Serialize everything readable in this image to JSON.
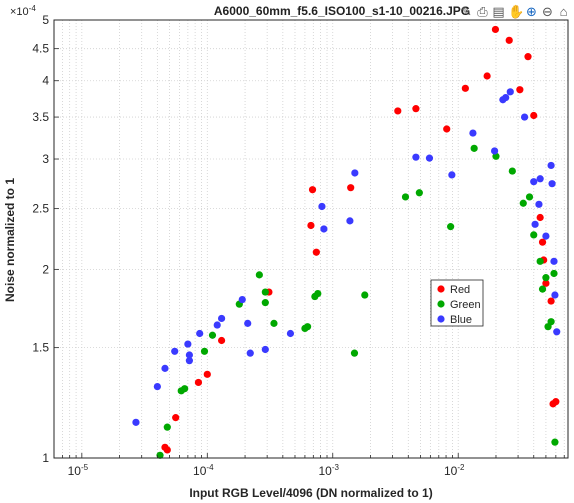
{
  "toolbar": {
    "icons": [
      "edit-icon",
      "print-icon",
      "save-icon",
      "pan-icon",
      "zoom-in-icon",
      "zoom-out-icon",
      "home-icon"
    ]
  },
  "chart_data": {
    "type": "scatter",
    "title": "A6000_60mm_f5.6_ISO100_s1-10_00216.JPG",
    "xlabel": "Input RGB Level/4096  (DN normalized to 1)",
    "ylabel": "Noise  normalized to 1",
    "y_exponent_label": "×10",
    "y_exponent_power": "-4",
    "x_scale": "log",
    "y_scale": "log",
    "xlim": [
      6e-06,
      0.075
    ],
    "ylim": [
      0.0001,
      0.0005
    ],
    "x_ticks": [
      {
        "value": 1e-05,
        "base": "10",
        "power": "-5"
      },
      {
        "value": 0.0001,
        "base": "10",
        "power": "-4"
      },
      {
        "value": 0.001,
        "base": "10",
        "power": "-3"
      },
      {
        "value": 0.01,
        "base": "10",
        "power": "-2"
      }
    ],
    "y_ticks": [
      {
        "value": 0.0001,
        "label": "1"
      },
      {
        "value": 0.00015,
        "label": "1.5"
      },
      {
        "value": 0.0002,
        "label": "2"
      },
      {
        "value": 0.00025,
        "label": "2.5"
      },
      {
        "value": 0.0003,
        "label": "3"
      },
      {
        "value": 0.00035,
        "label": "3.5"
      },
      {
        "value": 0.0004,
        "label": "4"
      },
      {
        "value": 0.00045,
        "label": "4.5"
      },
      {
        "value": 0.0005,
        "label": "5"
      }
    ],
    "grid": true,
    "legend_position": "center-right",
    "series": [
      {
        "name": "Red",
        "color": "#ff0000",
        "points": [
          [
            4.6e-05,
            0.000104
          ],
          [
            4.8e-05,
            0.000103
          ],
          [
            5.6e-05,
            0.000116
          ],
          [
            8.5e-05,
            0.000132
          ],
          [
            0.0001,
            0.000136
          ],
          [
            0.00013,
            0.000154
          ],
          [
            0.00031,
            0.000184
          ],
          [
            0.00067,
            0.000235
          ],
          [
            0.00069,
            0.000268
          ],
          [
            0.00074,
            0.000213
          ],
          [
            0.00139,
            0.00027
          ],
          [
            0.0033,
            0.000358
          ],
          [
            0.0046,
            0.000361
          ],
          [
            0.0081,
            0.000335
          ],
          [
            0.0114,
            0.000389
          ],
          [
            0.017,
            0.000407
          ],
          [
            0.0198,
            0.000483
          ],
          [
            0.0255,
            0.000464
          ],
          [
            0.031,
            0.000387
          ],
          [
            0.036,
            0.000437
          ],
          [
            0.04,
            0.000352
          ],
          [
            0.045,
            0.000242
          ],
          [
            0.047,
            0.000221
          ],
          [
            0.048,
            0.000207
          ],
          [
            0.05,
            0.00019
          ],
          [
            0.055,
            0.000178
          ],
          [
            0.057,
            0.000122
          ],
          [
            0.06,
            0.000123
          ]
        ]
      },
      {
        "name": "Green",
        "color": "#00a800",
        "points": [
          [
            4.2e-05,
            0.000101
          ],
          [
            4.8e-05,
            0.000112
          ],
          [
            6.2e-05,
            0.000128
          ],
          [
            6.6e-05,
            0.000129
          ],
          [
            9.5e-05,
            0.000148
          ],
          [
            0.00011,
            0.000157
          ],
          [
            0.00018,
            0.000176
          ],
          [
            0.00026,
            0.000196
          ],
          [
            0.00029,
            0.000184
          ],
          [
            0.00029,
            0.000177
          ],
          [
            0.00034,
            0.000164
          ],
          [
            0.0006,
            0.000161
          ],
          [
            0.00063,
            0.000162
          ],
          [
            0.00072,
            0.000181
          ],
          [
            0.00076,
            0.000183
          ],
          [
            0.00149,
            0.000147
          ],
          [
            0.0018,
            0.000182
          ],
          [
            0.0038,
            0.000261
          ],
          [
            0.0049,
            0.000265
          ],
          [
            0.0087,
            0.000234
          ],
          [
            0.0134,
            0.000312
          ],
          [
            0.02,
            0.000303
          ],
          [
            0.027,
            0.000287
          ],
          [
            0.033,
            0.000255
          ],
          [
            0.037,
            0.000261
          ],
          [
            0.04,
            0.000227
          ],
          [
            0.045,
            0.000206
          ],
          [
            0.047,
            0.000186
          ],
          [
            0.05,
            0.000194
          ],
          [
            0.052,
            0.000162
          ],
          [
            0.055,
            0.000165
          ],
          [
            0.058,
            0.000197
          ],
          [
            0.059,
            0.000106
          ]
        ]
      },
      {
        "name": "Blue",
        "color": "#3a3aff",
        "points": [
          [
            2.7e-05,
            0.000114
          ],
          [
            4e-05,
            0.00013
          ],
          [
            4.6e-05,
            0.000139
          ],
          [
            5.5e-05,
            0.000148
          ],
          [
            7e-05,
            0.000152
          ],
          [
            7.2e-05,
            0.000146
          ],
          [
            7.2e-05,
            0.000143
          ],
          [
            8.7e-05,
            0.000158
          ],
          [
            0.00012,
            0.000163
          ],
          [
            0.00013,
            0.000167
          ],
          [
            0.00019,
            0.000179
          ],
          [
            0.00021,
            0.000164
          ],
          [
            0.00022,
            0.000147
          ],
          [
            0.00029,
            0.000149
          ],
          [
            0.00046,
            0.000158
          ],
          [
            0.00082,
            0.000252
          ],
          [
            0.00085,
            0.000232
          ],
          [
            0.00137,
            0.000239
          ],
          [
            0.0015,
            0.000285
          ],
          [
            0.0046,
            0.000302
          ],
          [
            0.0059,
            0.000301
          ],
          [
            0.0089,
            0.000283
          ],
          [
            0.0131,
            0.00033
          ],
          [
            0.0195,
            0.000309
          ],
          [
            0.0227,
            0.000373
          ],
          [
            0.0239,
            0.000376
          ],
          [
            0.026,
            0.000384
          ],
          [
            0.0338,
            0.00035
          ],
          [
            0.04,
            0.000276
          ],
          [
            0.041,
            0.000236
          ],
          [
            0.044,
            0.000254
          ],
          [
            0.045,
            0.000279
          ],
          [
            0.05,
            0.000226
          ],
          [
            0.055,
            0.000293
          ],
          [
            0.056,
            0.000274
          ],
          [
            0.058,
            0.000206
          ],
          [
            0.059,
            0.000182
          ],
          [
            0.061,
            0.000159
          ]
        ]
      }
    ]
  }
}
